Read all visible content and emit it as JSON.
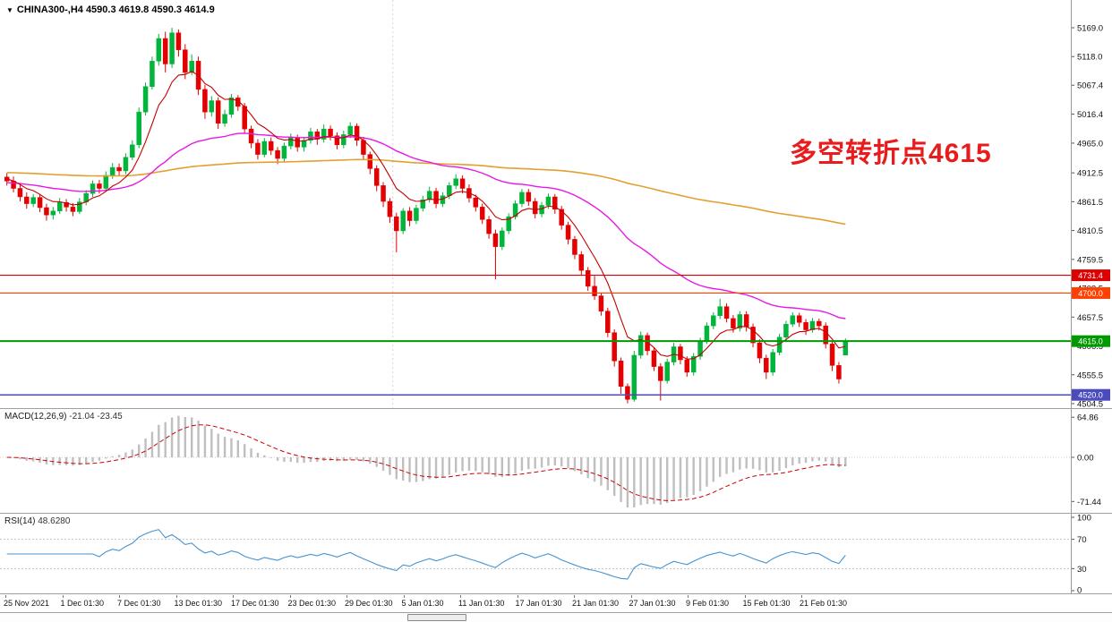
{
  "title_bar": {
    "dropdown_icon": "▼",
    "symbol_info": "CHINA300-,H4 4590.3 4619.8 4590.3 4614.9"
  },
  "annotation": {
    "text": "多空转折点4615",
    "color": "#e81c1c"
  },
  "colors": {
    "up": "#00b43c",
    "down": "#e40000",
    "ma_fast": "#c40000",
    "ma_mid": "#e619e6",
    "ma_slow": "#e2a030",
    "macd_hist": "#bfbfbf",
    "macd_signal": "#cc0000",
    "rsi": "#4694d2",
    "axis_text": "#111111",
    "grid": "#c8c8c8"
  },
  "main_panel": {
    "y_axis_labels": [
      "5169.0",
      "5118.0",
      "5067.4",
      "5016.4",
      "4965.0",
      "4912.5",
      "4861.5",
      "4810.5",
      "4759.5",
      "4708.5",
      "4657.5",
      "4606.5",
      "4555.5",
      "4504.5"
    ],
    "hlines": [
      {
        "value": 4731.4,
        "label": "4731.4",
        "color": "#dd0000",
        "width": 1.2
      },
      {
        "value": 4700.0,
        "label": "4700.0",
        "color": "#ff4000",
        "width": 1.2
      },
      {
        "value": 4615.0,
        "label": "4615.0",
        "color": "#009900",
        "width": 2
      },
      {
        "value": 4520.0,
        "label": "4520.0",
        "color": "#4b4bbe",
        "width": 1.5
      }
    ]
  },
  "chart_data": {
    "type": "candlestick",
    "symbol": "CHINA300-",
    "timeframe": "H4",
    "last_ohlc": {
      "open": 4590.3,
      "high": 4619.8,
      "low": 4590.3,
      "close": 4614.9
    },
    "price_range": [
      4504.5,
      5169.0
    ],
    "x_labels": [
      "25 Nov 2021",
      "1 Dec 01:30",
      "7 Dec 01:30",
      "13 Dec 01:30",
      "17 Dec 01:30",
      "23 Dec 01:30",
      "29 Dec 01:30",
      "5 Jan 01:30",
      "11 Jan 01:30",
      "17 Jan 01:30",
      "21 Jan 01:30",
      "27 Jan 01:30",
      "9 Feb 01:30",
      "15 Feb 01:30",
      "21 Feb 01:30"
    ],
    "period_separator_between": [
      6,
      7
    ],
    "moving_averages": [
      {
        "name": "slow-ma",
        "alpha": 0.009,
        "seed": 4913,
        "color_key": "ma_slow",
        "width": 1.6
      },
      {
        "name": "mid-ma",
        "alpha": 0.045,
        "seed": 4895,
        "color_key": "ma_mid",
        "width": 1.4
      },
      {
        "name": "fast-ma",
        "alpha": 0.22,
        "seed": 4903,
        "color_key": "ma_fast",
        "width": 1.1
      }
    ],
    "candles_ohlc": [
      [
        4905,
        4912,
        4890,
        4898
      ],
      [
        4898,
        4906,
        4878,
        4885
      ],
      [
        4885,
        4892,
        4862,
        4870
      ],
      [
        4870,
        4878,
        4849,
        4858
      ],
      [
        4858,
        4875,
        4852,
        4869
      ],
      [
        4869,
        4874,
        4843,
        4851
      ],
      [
        4851,
        4858,
        4828,
        4838
      ],
      [
        4838,
        4852,
        4830,
        4845
      ],
      [
        4845,
        4868,
        4840,
        4860
      ],
      [
        4860,
        4866,
        4844,
        4852
      ],
      [
        4852,
        4859,
        4836,
        4844
      ],
      [
        4844,
        4868,
        4840,
        4861
      ],
      [
        4861,
        4882,
        4855,
        4876
      ],
      [
        4876,
        4899,
        4870,
        4893
      ],
      [
        4893,
        4900,
        4876,
        4885
      ],
      [
        4885,
        4915,
        4880,
        4908
      ],
      [
        4908,
        4930,
        4902,
        4922
      ],
      [
        4922,
        4929,
        4908,
        4916
      ],
      [
        4916,
        4947,
        4910,
        4940
      ],
      [
        4940,
        4970,
        4935,
        4962
      ],
      [
        4962,
        5028,
        4956,
        5020
      ],
      [
        5020,
        5072,
        5014,
        5065
      ],
      [
        5065,
        5118,
        5060,
        5110
      ],
      [
        5110,
        5158,
        5102,
        5150
      ],
      [
        5150,
        5162,
        5090,
        5105
      ],
      [
        5105,
        5169,
        5098,
        5160
      ],
      [
        5160,
        5166,
        5118,
        5130
      ],
      [
        5130,
        5140,
        5078,
        5090
      ],
      [
        5090,
        5122,
        5085,
        5110
      ],
      [
        5110,
        5118,
        5050,
        5060
      ],
      [
        5060,
        5068,
        5008,
        5020
      ],
      [
        5020,
        5048,
        5012,
        5040
      ],
      [
        5040,
        5046,
        4990,
        5000
      ],
      [
        5000,
        5024,
        4994,
        5016
      ],
      [
        5016,
        5052,
        5010,
        5045
      ],
      [
        5045,
        5050,
        5022,
        5030
      ],
      [
        5030,
        5036,
        4982,
        4990
      ],
      [
        4990,
        4996,
        4956,
        4965
      ],
      [
        4965,
        4972,
        4936,
        4945
      ],
      [
        4945,
        4974,
        4940,
        4968
      ],
      [
        4968,
        4975,
        4944,
        4952
      ],
      [
        4952,
        4958,
        4928,
        4938
      ],
      [
        4938,
        4966,
        4932,
        4960
      ],
      [
        4960,
        4982,
        4954,
        4975
      ],
      [
        4975,
        4980,
        4950,
        4958
      ],
      [
        4958,
        4976,
        4950,
        4970
      ],
      [
        4970,
        4992,
        4964,
        4985
      ],
      [
        4985,
        4990,
        4962,
        4972
      ],
      [
        4972,
        4998,
        4966,
        4990
      ],
      [
        4990,
        4996,
        4970,
        4978
      ],
      [
        4978,
        4984,
        4954,
        4962
      ],
      [
        4962,
        4987,
        4956,
        4980
      ],
      [
        4980,
        5002,
        4974,
        4995
      ],
      [
        4995,
        5000,
        4960,
        4970
      ],
      [
        4970,
        4976,
        4936,
        4945
      ],
      [
        4945,
        4950,
        4910,
        4920
      ],
      [
        4920,
        4926,
        4880,
        4890
      ],
      [
        4890,
        4896,
        4852,
        4862
      ],
      [
        4862,
        4868,
        4824,
        4835
      ],
      [
        4835,
        4842,
        4772,
        4810
      ],
      [
        4810,
        4850,
        4804,
        4845
      ],
      [
        4845,
        4852,
        4818,
        4828
      ],
      [
        4828,
        4856,
        4822,
        4850
      ],
      [
        4850,
        4872,
        4844,
        4865
      ],
      [
        4865,
        4888,
        4860,
        4880
      ],
      [
        4880,
        4886,
        4850,
        4858
      ],
      [
        4858,
        4878,
        4852,
        4872
      ],
      [
        4872,
        4896,
        4866,
        4890
      ],
      [
        4890,
        4910,
        4884,
        4902
      ],
      [
        4902,
        4908,
        4876,
        4885
      ],
      [
        4885,
        4892,
        4860,
        4868
      ],
      [
        4868,
        4874,
        4844,
        4852
      ],
      [
        4852,
        4858,
        4822,
        4830
      ],
      [
        4830,
        4836,
        4796,
        4805
      ],
      [
        4805,
        4812,
        4724,
        4782
      ],
      [
        4782,
        4816,
        4776,
        4810
      ],
      [
        4810,
        4841,
        4804,
        4835
      ],
      [
        4835,
        4864,
        4830,
        4858
      ],
      [
        4858,
        4884,
        4852,
        4878
      ],
      [
        4878,
        4884,
        4854,
        4862
      ],
      [
        4862,
        4868,
        4832,
        4840
      ],
      [
        4840,
        4861,
        4834,
        4855
      ],
      [
        4855,
        4876,
        4849,
        4870
      ],
      [
        4870,
        4875,
        4840,
        4848
      ],
      [
        4848,
        4854,
        4812,
        4820
      ],
      [
        4820,
        4826,
        4786,
        4795
      ],
      [
        4795,
        4801,
        4760,
        4768
      ],
      [
        4768,
        4774,
        4732,
        4740
      ],
      [
        4740,
        4746,
        4704,
        4712
      ],
      [
        4712,
        4730,
        4688,
        4695
      ],
      [
        4695,
        4700,
        4660,
        4668
      ],
      [
        4668,
        4674,
        4622,
        4630
      ],
      [
        4630,
        4636,
        4570,
        4580
      ],
      [
        4580,
        4586,
        4522,
        4535
      ],
      [
        4535,
        4540,
        4505,
        4512
      ],
      [
        4512,
        4598,
        4508,
        4590
      ],
      [
        4590,
        4632,
        4584,
        4625
      ],
      [
        4625,
        4630,
        4590,
        4598
      ],
      [
        4598,
        4604,
        4562,
        4570
      ],
      [
        4570,
        4576,
        4510,
        4545
      ],
      [
        4545,
        4584,
        4540,
        4578
      ],
      [
        4578,
        4612,
        4572,
        4605
      ],
      [
        4605,
        4610,
        4574,
        4582
      ],
      [
        4582,
        4588,
        4552,
        4560
      ],
      [
        4560,
        4594,
        4554,
        4588
      ],
      [
        4588,
        4621,
        4582,
        4615
      ],
      [
        4615,
        4648,
        4610,
        4642
      ],
      [
        4642,
        4666,
        4636,
        4660
      ],
      [
        4660,
        4690,
        4654,
        4676
      ],
      [
        4676,
        4682,
        4648,
        4655
      ],
      [
        4655,
        4661,
        4630,
        4638
      ],
      [
        4638,
        4668,
        4632,
        4662
      ],
      [
        4662,
        4668,
        4632,
        4640
      ],
      [
        4640,
        4646,
        4604,
        4612
      ],
      [
        4612,
        4618,
        4576,
        4585
      ],
      [
        4585,
        4591,
        4548,
        4560
      ],
      [
        4560,
        4601,
        4554,
        4595
      ],
      [
        4595,
        4628,
        4590,
        4622
      ],
      [
        4622,
        4651,
        4616,
        4645
      ],
      [
        4645,
        4666,
        4640,
        4660
      ],
      [
        4660,
        4665,
        4640,
        4648
      ],
      [
        4648,
        4654,
        4626,
        4635
      ],
      [
        4635,
        4656,
        4630,
        4650
      ],
      [
        4650,
        4655,
        4634,
        4642
      ],
      [
        4642,
        4648,
        4602,
        4610
      ],
      [
        4610,
        4616,
        4562,
        4572
      ],
      [
        4572,
        4578,
        4540,
        4548
      ],
      [
        4590.3,
        4619.8,
        4590.3,
        4614.9
      ]
    ],
    "macd": {
      "label": "MACD(12,26,9)",
      "values_text": "-21.04 -23.45",
      "fast": 12,
      "slow": 26,
      "signal": 9,
      "axis_labels": [
        "64.86",
        "0.00",
        "-71.44"
      ]
    },
    "rsi": {
      "label": "RSI(14)",
      "value_text": "48.6280",
      "period": 14,
      "axis_labels": [
        "100",
        "70",
        "30",
        "0"
      ],
      "levels": [
        70,
        30
      ]
    }
  }
}
